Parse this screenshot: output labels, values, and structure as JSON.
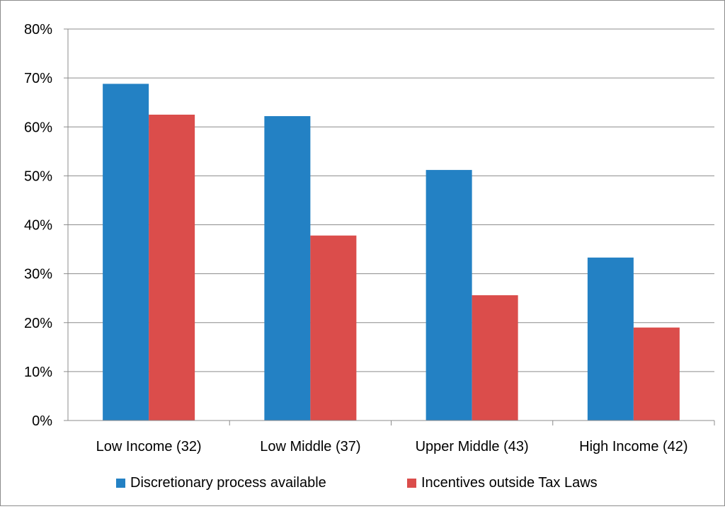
{
  "chart_data": {
    "type": "bar",
    "title": "",
    "xlabel": "",
    "ylabel": "",
    "categories": [
      "Low Income (32)",
      "Low Middle (37)",
      "Upper Middle (43)",
      "High Income (42)"
    ],
    "series": [
      {
        "name": "Discretionary process available",
        "color": "#2381c4",
        "values": [
          68.8,
          62.2,
          51.2,
          33.3
        ]
      },
      {
        "name": "Incentives outside Tax Laws",
        "color": "#db4d4b",
        "values": [
          62.5,
          37.8,
          25.6,
          19.0
        ]
      }
    ],
    "ylim": [
      0,
      80
    ],
    "yticks": [
      "0%",
      "10%",
      "20%",
      "30%",
      "40%",
      "50%",
      "60%",
      "70%",
      "80%"
    ],
    "grid": true,
    "legend_position": "bottom"
  }
}
